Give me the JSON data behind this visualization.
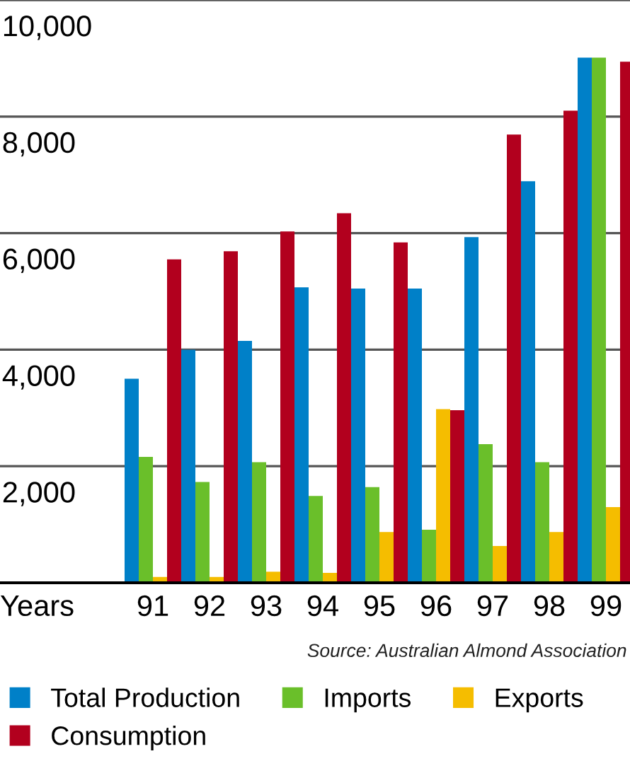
{
  "chart_data": {
    "type": "bar",
    "xlabel": "Years",
    "categories": [
      "91",
      "92",
      "93",
      "94",
      "95",
      "96",
      "97",
      "98",
      "99"
    ],
    "series": [
      {
        "name": "Total Production",
        "color": "#0080c8",
        "values": [
          3500,
          4000,
          4150,
          5070,
          5050,
          5050,
          5930,
          6890,
          9010
        ]
      },
      {
        "name": "Imports",
        "color": "#6abf2a",
        "values": [
          2160,
          1730,
          2070,
          1490,
          1640,
          910,
          2380,
          2070,
          9010
        ]
      },
      {
        "name": "Exports",
        "color": "#f5bd00",
        "values": [
          100,
          100,
          190,
          170,
          870,
          2980,
          630,
          870,
          1300
        ]
      },
      {
        "name": "Consumption",
        "color": "#b2001e",
        "values": [
          5550,
          5690,
          6030,
          6340,
          5840,
          2960,
          7690,
          8100,
          8940
        ]
      }
    ],
    "ylim": [
      0,
      10000
    ],
    "yticks": [
      {
        "value": 2000,
        "label": "2,000"
      },
      {
        "value": 4000,
        "label": "4,000"
      },
      {
        "value": 6000,
        "label": "6,000"
      },
      {
        "value": 8000,
        "label": "8,000"
      },
      {
        "value": 10000,
        "label": "10,000"
      }
    ],
    "grid": "y",
    "legend": "bottom",
    "annotations": [
      "Source: Australian Almond Association"
    ]
  }
}
